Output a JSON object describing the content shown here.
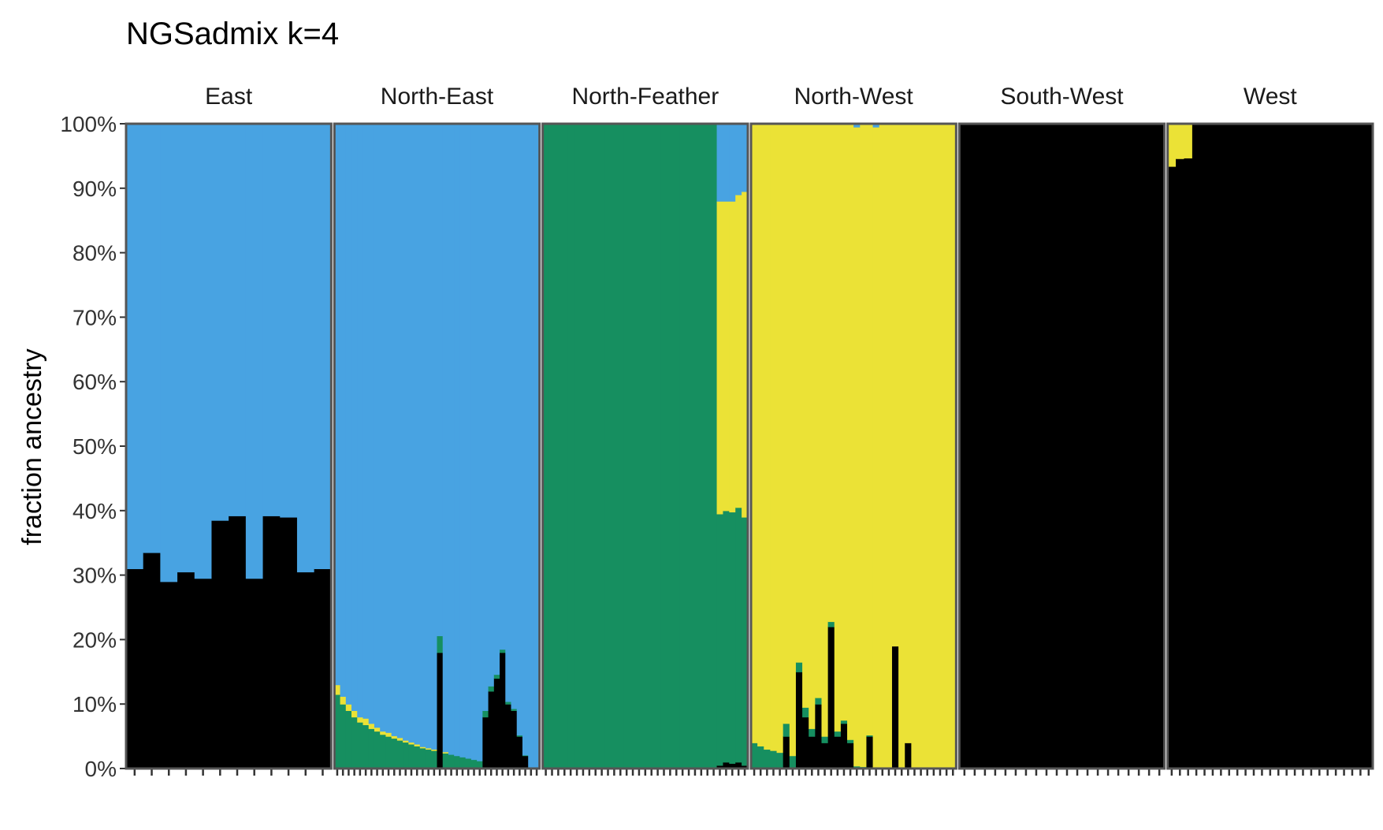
{
  "chart_data": {
    "type": "bar",
    "subtype": "stacked-admixture",
    "title": "NGSadmix k=4",
    "xlabel": "",
    "ylabel": "fraction ancestry",
    "ylim": [
      0,
      1
    ],
    "y_ticks": [
      "0%",
      "10%",
      "20%",
      "30%",
      "40%",
      "50%",
      "60%",
      "70%",
      "80%",
      "90%",
      "100%"
    ],
    "components": [
      {
        "name": "black",
        "color": "#000000"
      },
      {
        "name": "green",
        "color": "#168f60"
      },
      {
        "name": "yellow",
        "color": "#ebe236"
      },
      {
        "name": "blue",
        "color": "#48a3e2"
      }
    ],
    "panels": [
      {
        "name": "East",
        "samples": [
          [
            0.31,
            0,
            0,
            0.69
          ],
          [
            0.335,
            0,
            0,
            0.665
          ],
          [
            0.29,
            0,
            0,
            0.71
          ],
          [
            0.305,
            0,
            0,
            0.695
          ],
          [
            0.295,
            0,
            0,
            0.705
          ],
          [
            0.385,
            0,
            0,
            0.615
          ],
          [
            0.392,
            0,
            0,
            0.608
          ],
          [
            0.295,
            0,
            0,
            0.705
          ],
          [
            0.392,
            0,
            0,
            0.608
          ],
          [
            0.39,
            0,
            0,
            0.61
          ],
          [
            0.305,
            0,
            0,
            0.695
          ],
          [
            0.31,
            0,
            0,
            0.69
          ]
        ]
      },
      {
        "name": "North-East",
        "samples": [
          [
            0,
            0.115,
            0.015,
            0.87
          ],
          [
            0,
            0.1,
            0.012,
            0.888
          ],
          [
            0,
            0.09,
            0.01,
            0.9
          ],
          [
            0,
            0.08,
            0.01,
            0.91
          ],
          [
            0,
            0.072,
            0.008,
            0.92
          ],
          [
            0,
            0.068,
            0.01,
            0.922
          ],
          [
            0,
            0.062,
            0.008,
            0.93
          ],
          [
            0,
            0.058,
            0.006,
            0.936
          ],
          [
            0,
            0.053,
            0.005,
            0.942
          ],
          [
            0,
            0.05,
            0.006,
            0.944
          ],
          [
            0,
            0.047,
            0.004,
            0.949
          ],
          [
            0,
            0.044,
            0.004,
            0.952
          ],
          [
            0,
            0.041,
            0.003,
            0.956
          ],
          [
            0,
            0.038,
            0.003,
            0.959
          ],
          [
            0,
            0.035,
            0.003,
            0.962
          ],
          [
            0,
            0.032,
            0.002,
            0.966
          ],
          [
            0,
            0.03,
            0.002,
            0.968
          ],
          [
            0,
            0.028,
            0.002,
            0.97
          ],
          [
            0.18,
            0.026,
            0,
            0.794
          ],
          [
            0,
            0.024,
            0.002,
            0.974
          ],
          [
            0,
            0.022,
            0,
            0.978
          ],
          [
            0,
            0.02,
            0,
            0.98
          ],
          [
            0,
            0.018,
            0,
            0.982
          ],
          [
            0,
            0.016,
            0,
            0.984
          ],
          [
            0,
            0.014,
            0,
            0.986
          ],
          [
            0,
            0.012,
            0,
            0.988
          ],
          [
            0.08,
            0.01,
            0,
            0.91
          ],
          [
            0.12,
            0.008,
            0,
            0.872
          ],
          [
            0.14,
            0.006,
            0,
            0.854
          ],
          [
            0.18,
            0.005,
            0,
            0.815
          ],
          [
            0.1,
            0.004,
            0,
            0.896
          ],
          [
            0.09,
            0.003,
            0,
            0.907
          ],
          [
            0.05,
            0.002,
            0,
            0.948
          ],
          [
            0.02,
            0.001,
            0,
            0.979
          ],
          [
            0,
            0,
            0,
            1
          ],
          [
            0,
            0,
            0,
            1
          ]
        ]
      },
      {
        "name": "North-Feather",
        "samples": [
          [
            0,
            1,
            0,
            0
          ],
          [
            0,
            1,
            0,
            0
          ],
          [
            0,
            1,
            0,
            0
          ],
          [
            0,
            1,
            0,
            0
          ],
          [
            0,
            1,
            0,
            0
          ],
          [
            0,
            1,
            0,
            0
          ],
          [
            0,
            1,
            0,
            0
          ],
          [
            0,
            1,
            0,
            0
          ],
          [
            0,
            1,
            0,
            0
          ],
          [
            0,
            1,
            0,
            0
          ],
          [
            0,
            1,
            0,
            0
          ],
          [
            0,
            1,
            0,
            0
          ],
          [
            0,
            1,
            0,
            0
          ],
          [
            0,
            1,
            0,
            0
          ],
          [
            0,
            1,
            0,
            0
          ],
          [
            0,
            1,
            0,
            0
          ],
          [
            0,
            1,
            0,
            0
          ],
          [
            0,
            1,
            0,
            0
          ],
          [
            0,
            1,
            0,
            0
          ],
          [
            0,
            1,
            0,
            0
          ],
          [
            0,
            1,
            0,
            0
          ],
          [
            0,
            1,
            0,
            0
          ],
          [
            0,
            1,
            0,
            0
          ],
          [
            0,
            1,
            0,
            0
          ],
          [
            0,
            1,
            0,
            0
          ],
          [
            0,
            1,
            0,
            0
          ],
          [
            0,
            1,
            0,
            0
          ],
          [
            0,
            1,
            0,
            0
          ],
          [
            0.005,
            0.39,
            0.485,
            0.12
          ],
          [
            0.01,
            0.39,
            0.48,
            0.12
          ],
          [
            0.008,
            0.39,
            0.482,
            0.12
          ],
          [
            0.01,
            0.395,
            0.485,
            0.11
          ],
          [
            0.005,
            0.385,
            0.505,
            0.105
          ]
        ]
      },
      {
        "name": "North-West",
        "samples": [
          [
            0,
            0.04,
            0.96,
            0
          ],
          [
            0,
            0.035,
            0.965,
            0
          ],
          [
            0,
            0.03,
            0.97,
            0
          ],
          [
            0,
            0.028,
            0.972,
            0
          ],
          [
            0,
            0.025,
            0.975,
            0
          ],
          [
            0.05,
            0.02,
            0.93,
            0
          ],
          [
            0,
            0.02,
            0.98,
            0
          ],
          [
            0.15,
            0.015,
            0.835,
            0
          ],
          [
            0.08,
            0.015,
            0.905,
            0
          ],
          [
            0.05,
            0.012,
            0.938,
            0
          ],
          [
            0.1,
            0.01,
            0.89,
            0
          ],
          [
            0.04,
            0.01,
            0.95,
            0
          ],
          [
            0.22,
            0.008,
            0.772,
            0
          ],
          [
            0.05,
            0.008,
            0.942,
            0
          ],
          [
            0.07,
            0.005,
            0.925,
            0
          ],
          [
            0.04,
            0.005,
            0.955,
            0
          ],
          [
            0,
            0.004,
            0.991,
            0.005
          ],
          [
            0,
            0.003,
            0.997,
            0
          ],
          [
            0.05,
            0.002,
            0.948,
            0
          ],
          [
            0,
            0.002,
            0.993,
            0.005
          ],
          [
            0,
            0.001,
            0.999,
            0
          ],
          [
            0,
            0.001,
            0.999,
            0
          ],
          [
            0.19,
            0,
            0.81,
            0
          ],
          [
            0,
            0,
            1,
            0
          ],
          [
            0.04,
            0,
            0.96,
            0
          ],
          [
            0,
            0,
            1,
            0
          ],
          [
            0,
            0,
            1,
            0
          ],
          [
            0,
            0,
            1,
            0
          ],
          [
            0,
            0,
            1,
            0
          ],
          [
            0,
            0,
            1,
            0
          ],
          [
            0,
            0,
            1,
            0
          ],
          [
            0,
            0,
            1,
            0
          ]
        ]
      },
      {
        "name": "South-West",
        "samples": [
          [
            1,
            0,
            0,
            0
          ],
          [
            1,
            0,
            0,
            0
          ],
          [
            1,
            0,
            0,
            0
          ],
          [
            1,
            0,
            0,
            0
          ],
          [
            1,
            0,
            0,
            0
          ],
          [
            1,
            0,
            0,
            0
          ],
          [
            1,
            0,
            0,
            0
          ],
          [
            1,
            0,
            0,
            0
          ],
          [
            1,
            0,
            0,
            0
          ],
          [
            1,
            0,
            0,
            0
          ],
          [
            1,
            0,
            0,
            0
          ],
          [
            1,
            0,
            0,
            0
          ],
          [
            1,
            0,
            0,
            0
          ],
          [
            1,
            0,
            0,
            0
          ],
          [
            1,
            0,
            0,
            0
          ],
          [
            1,
            0,
            0,
            0
          ],
          [
            1,
            0,
            0,
            0
          ],
          [
            1,
            0,
            0,
            0
          ],
          [
            1,
            0,
            0,
            0
          ],
          [
            1,
            0,
            0,
            0
          ]
        ]
      },
      {
        "name": "West",
        "samples": [
          [
            0.934,
            0,
            0.066,
            0
          ],
          [
            0.946,
            0,
            0.054,
            0
          ],
          [
            0.947,
            0,
            0.053,
            0
          ],
          [
            1,
            0,
            0,
            0
          ],
          [
            1,
            0,
            0,
            0
          ],
          [
            1,
            0,
            0,
            0
          ],
          [
            1,
            0,
            0,
            0
          ],
          [
            1,
            0,
            0,
            0
          ],
          [
            1,
            0,
            0,
            0
          ],
          [
            1,
            0,
            0,
            0
          ],
          [
            1,
            0,
            0,
            0
          ],
          [
            1,
            0,
            0,
            0
          ],
          [
            1,
            0,
            0,
            0
          ],
          [
            1,
            0,
            0,
            0
          ],
          [
            1,
            0,
            0,
            0
          ],
          [
            1,
            0,
            0,
            0
          ],
          [
            1,
            0,
            0,
            0
          ],
          [
            1,
            0,
            0,
            0
          ],
          [
            1,
            0,
            0,
            0
          ],
          [
            1,
            0,
            0,
            0
          ],
          [
            1,
            0,
            0,
            0
          ],
          [
            1,
            0,
            0,
            0
          ],
          [
            1,
            0,
            0,
            0
          ],
          [
            1,
            0,
            0,
            0
          ],
          [
            1,
            0,
            0,
            0
          ]
        ]
      }
    ]
  }
}
